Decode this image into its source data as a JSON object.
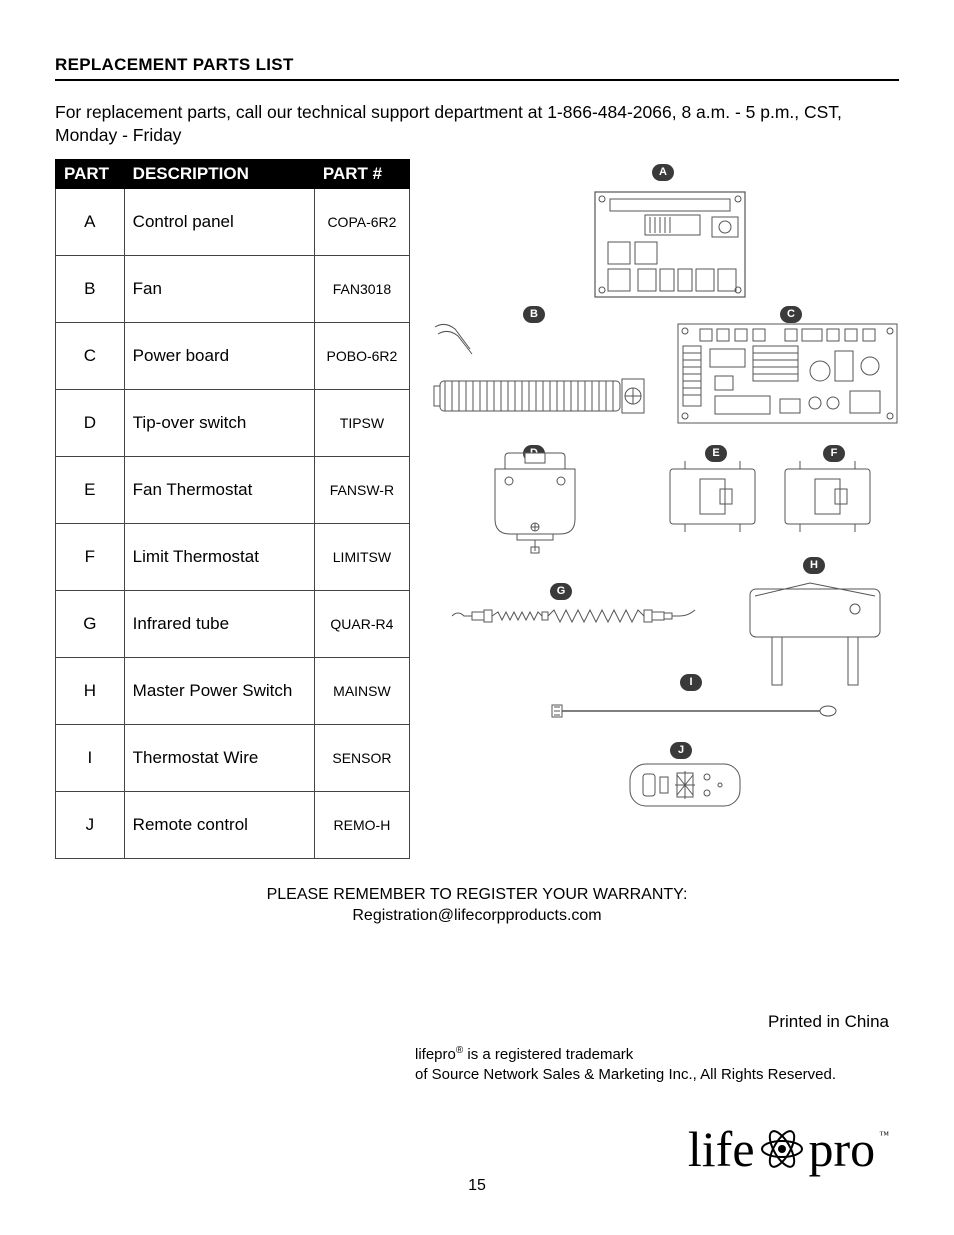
{
  "section_title": "REPLACEMENT PARTS LIST",
  "intro": "For replacement parts, call our technical support department at 1-866-484-2066, 8 a.m. - 5 p.m., CST, Monday - Friday",
  "table": {
    "headers": {
      "part": "PART",
      "desc": "DESCRIPTION",
      "num": "PART #"
    },
    "rows": [
      {
        "part": "A",
        "desc": "Control panel",
        "num": "COPA-6R2"
      },
      {
        "part": "B",
        "desc": "Fan",
        "num": "FAN3018"
      },
      {
        "part": "C",
        "desc": "Power board",
        "num": "POBO-6R2"
      },
      {
        "part": "D",
        "desc": "Tip-over switch",
        "num": "TIPSW"
      },
      {
        "part": "E",
        "desc": "Fan Thermostat",
        "num": "FANSW-R"
      },
      {
        "part": "F",
        "desc": "Limit Thermostat",
        "num": "LIMITSW"
      },
      {
        "part": "G",
        "desc": "Infrared tube",
        "num": "QUAR-R4"
      },
      {
        "part": "H",
        "desc": "Master Power Switch",
        "num": "MAINSW"
      },
      {
        "part": "I",
        "desc": "Thermostat Wire",
        "num": "SENSOR"
      },
      {
        "part": "J",
        "desc": "Remote control",
        "num": "REMO-H"
      }
    ]
  },
  "labels": {
    "A": "A",
    "B": "B",
    "C": "C",
    "D": "D",
    "E": "E",
    "F": "F",
    "G": "G",
    "H": "H",
    "I": "I",
    "J": "J"
  },
  "warranty_line1": "PLEASE REMEMBER TO REGISTER YOUR WARRANTY:",
  "warranty_line2": "Registration@lifecorpproducts.com",
  "printed": "Printed in China",
  "trademark_1a": "lifepro",
  "trademark_1b": " is a registered trademark",
  "trademark_2": "of Source Network Sales & Marketing Inc., All Rights Reserved.",
  "logo_left": "life",
  "logo_right": "pro",
  "logo_tm": "™",
  "page_number": "15",
  "style": {
    "stroke": "#555",
    "fill": "#fff",
    "bg": "#ffffff"
  }
}
